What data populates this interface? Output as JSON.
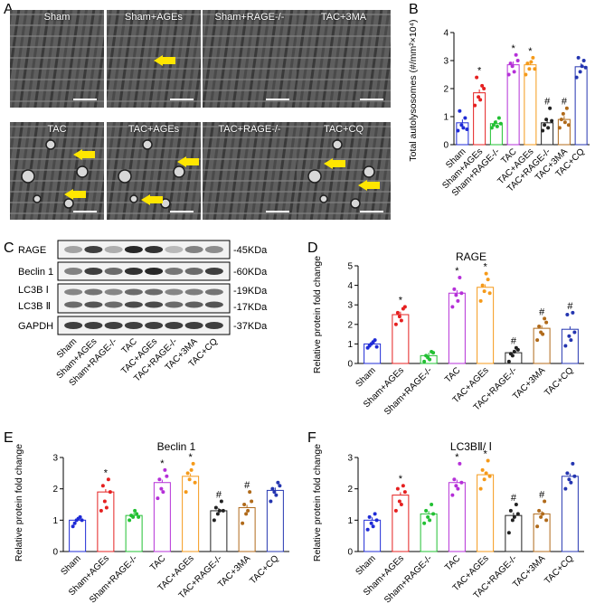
{
  "panels": {
    "A": "A",
    "B": "B",
    "C": "C",
    "D": "D",
    "E": "E",
    "F": "F"
  },
  "em_tiles": [
    "Sham",
    "Sham+AGEs",
    "Sham+RAGE-/-",
    "TAC+3MA",
    "TAC",
    "TAC+AGEs",
    "TAC+RAGE-/-",
    "TAC+CQ"
  ],
  "colors": {
    "Sham": "#1f2bd6",
    "Sham+AGEs": "#e52020",
    "Sham+RAGE-/-": "#22c033",
    "TAC": "#b530d8",
    "TAC+AGEs": "#f59a1a",
    "TAC+RAGE-/-": "#222222",
    "TAC+3MA": "#b06a1a",
    "TAC+CQ": "#2435b0",
    "arrow": "#ffe600"
  },
  "western": {
    "rows": [
      "RAGE",
      "Beclin 1",
      "LC3B Ⅰ",
      "LC3B Ⅱ",
      "GAPDH"
    ],
    "sizes": [
      "-45KDa",
      "-60KDa",
      "-19KDa",
      "-17KDa",
      "-37KDa"
    ],
    "lanes": [
      "Sham",
      "Sham+AGEs",
      "Sham+RAGE-/-",
      "TAC",
      "TAC+AGEs",
      "TAC+RAGE-/-",
      "TAC+3MA",
      "TAC+CQ"
    ]
  },
  "chart_data": [
    {
      "id": "B",
      "type": "bar",
      "title": "",
      "ylabel": "Total autolysosomes (#/mm²×10⁴)",
      "ylim": [
        0,
        4
      ],
      "yticks": [
        "0",
        "1",
        "2",
        "3",
        "4"
      ],
      "categories": [
        "Sham",
        "Sham+AGEs",
        "Sham+RAGE-/-",
        "TAC",
        "TAC+AGEs",
        "TAC+RAGE-/-",
        "TAC+3MA",
        "TAC+CQ"
      ],
      "values": [
        0.78,
        1.85,
        0.75,
        2.85,
        2.85,
        0.78,
        0.9,
        2.78
      ],
      "points": [
        [
          0.5,
          0.7,
          0.95,
          1.2,
          0.6,
          0.55
        ],
        [
          1.4,
          1.7,
          2.1,
          2.4,
          1.6,
          2.0
        ],
        [
          0.6,
          0.8,
          0.95,
          0.7,
          0.65,
          0.75
        ],
        [
          2.5,
          2.8,
          3.2,
          2.9,
          2.6,
          3.0
        ],
        [
          2.5,
          2.7,
          3.1,
          2.9,
          2.95,
          2.7
        ],
        [
          0.5,
          0.9,
          1.3,
          0.7,
          0.6,
          0.85
        ],
        [
          0.6,
          1.1,
          1.3,
          0.9,
          0.8,
          0.7
        ],
        [
          2.4,
          2.6,
          3.0,
          3.1,
          2.8,
          2.75
        ]
      ],
      "marks": [
        "",
        "*",
        "",
        "*",
        "*",
        "#",
        "#",
        ""
      ]
    },
    {
      "id": "D",
      "type": "bar",
      "title": "RAGE",
      "ylabel": "Relative protein fold change",
      "ylim": [
        0,
        5
      ],
      "yticks": [
        "0",
        "1",
        "2",
        "3",
        "4",
        "5"
      ],
      "categories": [
        "Sham",
        "Sham+AGEs",
        "Sham+RAGE-/-",
        "TAC",
        "TAC+AGEs",
        "TAC+RAGE-/-",
        "TAC+3MA",
        "TAC+CQ"
      ],
      "values": [
        1.0,
        2.5,
        0.4,
        3.6,
        3.9,
        0.55,
        1.8,
        1.75
      ],
      "points": [
        [
          0.8,
          1.0,
          1.2,
          0.9,
          1.1,
          0.85
        ],
        [
          2.0,
          2.4,
          2.8,
          2.6,
          2.2,
          2.9
        ],
        [
          0.1,
          0.3,
          0.6,
          0.4,
          0.2,
          0.55
        ],
        [
          2.9,
          3.5,
          4.4,
          3.8,
          3.2,
          3.6
        ],
        [
          3.2,
          3.7,
          4.3,
          4.0,
          4.6,
          3.6
        ],
        [
          0.1,
          0.4,
          0.8,
          0.5,
          0.6,
          0.7
        ],
        [
          1.2,
          1.6,
          2.3,
          1.9,
          1.5,
          2.1
        ],
        [
          0.9,
          1.4,
          2.6,
          2.5,
          1.2,
          1.6
        ]
      ],
      "marks": [
        "",
        "*",
        "",
        "*",
        "*",
        "#",
        "#",
        "#"
      ]
    },
    {
      "id": "E",
      "type": "bar",
      "title": "Beclin 1",
      "ylabel": "Relative protein fold change",
      "ylim": [
        0,
        3
      ],
      "yticks": [
        "0",
        "1",
        "2",
        "3"
      ],
      "categories": [
        "Sham",
        "Sham+AGEs",
        "Sham+RAGE-/-",
        "TAC",
        "TAC+AGEs",
        "TAC+RAGE-/-",
        "TAC+3MA",
        "TAC+CQ"
      ],
      "values": [
        1.0,
        1.9,
        1.15,
        2.2,
        2.4,
        1.3,
        1.4,
        1.95
      ],
      "points": [
        [
          0.8,
          1.0,
          1.1,
          0.9,
          1.05,
          1.0
        ],
        [
          1.3,
          1.6,
          2.3,
          2.1,
          1.4,
          1.9
        ],
        [
          1.0,
          1.1,
          1.2,
          1.15,
          1.3,
          1.1
        ],
        [
          1.7,
          2.0,
          2.6,
          2.3,
          1.9,
          2.4
        ],
        [
          1.9,
          2.3,
          2.8,
          2.5,
          2.6,
          2.2
        ],
        [
          1.0,
          1.2,
          1.6,
          1.4,
          1.3,
          1.3
        ],
        [
          0.9,
          1.2,
          1.9,
          1.5,
          1.3,
          1.6
        ],
        [
          1.6,
          1.9,
          2.2,
          2.0,
          1.8,
          2.1
        ]
      ],
      "marks": [
        "",
        "*",
        "",
        "*",
        "*",
        "#",
        "#",
        ""
      ]
    },
    {
      "id": "F",
      "type": "bar",
      "title": "LC3BⅡ/ Ⅰ",
      "ylabel": "Relative protein fold change",
      "ylim": [
        0,
        3
      ],
      "yticks": [
        "0",
        "1",
        "2",
        "3"
      ],
      "categories": [
        "Sham",
        "Sham+AGEs",
        "Sham+RAGE-/-",
        "TAC",
        "TAC+AGEs",
        "TAC+RAGE-/-",
        "TAC+3MA",
        "TAC+CQ"
      ],
      "values": [
        1.0,
        1.8,
        1.2,
        2.2,
        2.45,
        1.15,
        1.2,
        2.4
      ],
      "points": [
        [
          0.7,
          0.9,
          1.2,
          1.1,
          0.8,
          1.0
        ],
        [
          1.3,
          1.6,
          2.1,
          2.0,
          1.5,
          1.9
        ],
        [
          0.9,
          1.1,
          1.5,
          1.3,
          1.0,
          1.2
        ],
        [
          1.8,
          2.1,
          2.8,
          2.3,
          2.0,
          2.2
        ],
        [
          2.0,
          2.3,
          2.9,
          2.6,
          2.5,
          2.4
        ],
        [
          0.6,
          1.0,
          1.5,
          1.3,
          1.1,
          1.2
        ],
        [
          0.8,
          1.1,
          1.6,
          1.3,
          1.2,
          1.0
        ],
        [
          2.0,
          2.3,
          2.8,
          2.5,
          2.2,
          2.4
        ]
      ],
      "marks": [
        "",
        "*",
        "",
        "*",
        "*",
        "#",
        "#",
        ""
      ]
    }
  ]
}
